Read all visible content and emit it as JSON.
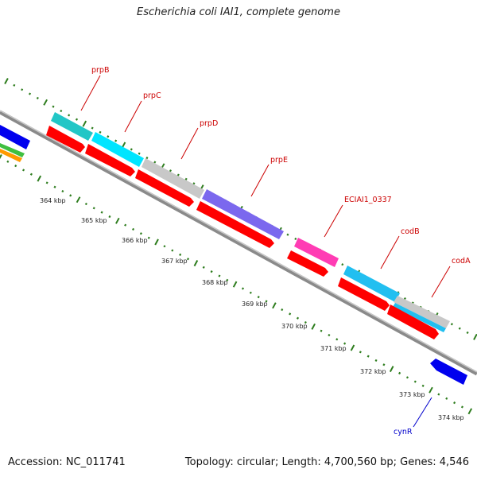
{
  "header": {
    "title": "Escherichia coli IAI1, complete genome"
  },
  "footer": {
    "accession": "Accession: NC_011741",
    "info": "Topology: circular; Length: 4,700,560 bp; Genes: 4,546"
  },
  "genome_map": {
    "kbp_labels": [
      "364 kbp",
      "365 kbp",
      "366 kbp",
      "367 kbp",
      "368 kbp",
      "369 kbp",
      "370 kbp",
      "371 kbp",
      "372 kbp",
      "373 kbp",
      "374 kbp"
    ],
    "gene_labels": [
      {
        "name": "prpB",
        "color": "#cc0000"
      },
      {
        "name": "prpC",
        "color": "#cc0000"
      },
      {
        "name": "prpD",
        "color": "#cc0000"
      },
      {
        "name": "prpE",
        "color": "#cc0000"
      },
      {
        "name": "ECIAI1_0337",
        "color": "#cc0000"
      },
      {
        "name": "codB",
        "color": "#cc0000"
      },
      {
        "name": "codA",
        "color": "#cc0000"
      },
      {
        "name": "cynR",
        "color": "#0000cc"
      }
    ],
    "colors": {
      "backbone": "#909090",
      "tick": "#2e7d1e",
      "cds": "#ff0000",
      "prpB": "#22c6c6",
      "prpC": "#00e5ff",
      "prpD": "#c8c8c8",
      "prpE": "#7b68ee",
      "ECIAI1_0337": "#ff3cb4",
      "codB": "#22bff0",
      "codA": "#c8c8c8",
      "cynR": "#0000ee"
    }
  }
}
